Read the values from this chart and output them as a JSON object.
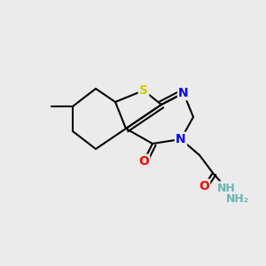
{
  "background_color": "#ebebeb",
  "bond_color": "#000000",
  "atom_colors": {
    "S": "#cccc00",
    "N": "#0000ff",
    "O": "#ff0000",
    "H": "#6ab5b5",
    "C": "#000000"
  },
  "bond_width": 1.5,
  "figsize": [
    3.0,
    3.0
  ],
  "dpi": 100
}
